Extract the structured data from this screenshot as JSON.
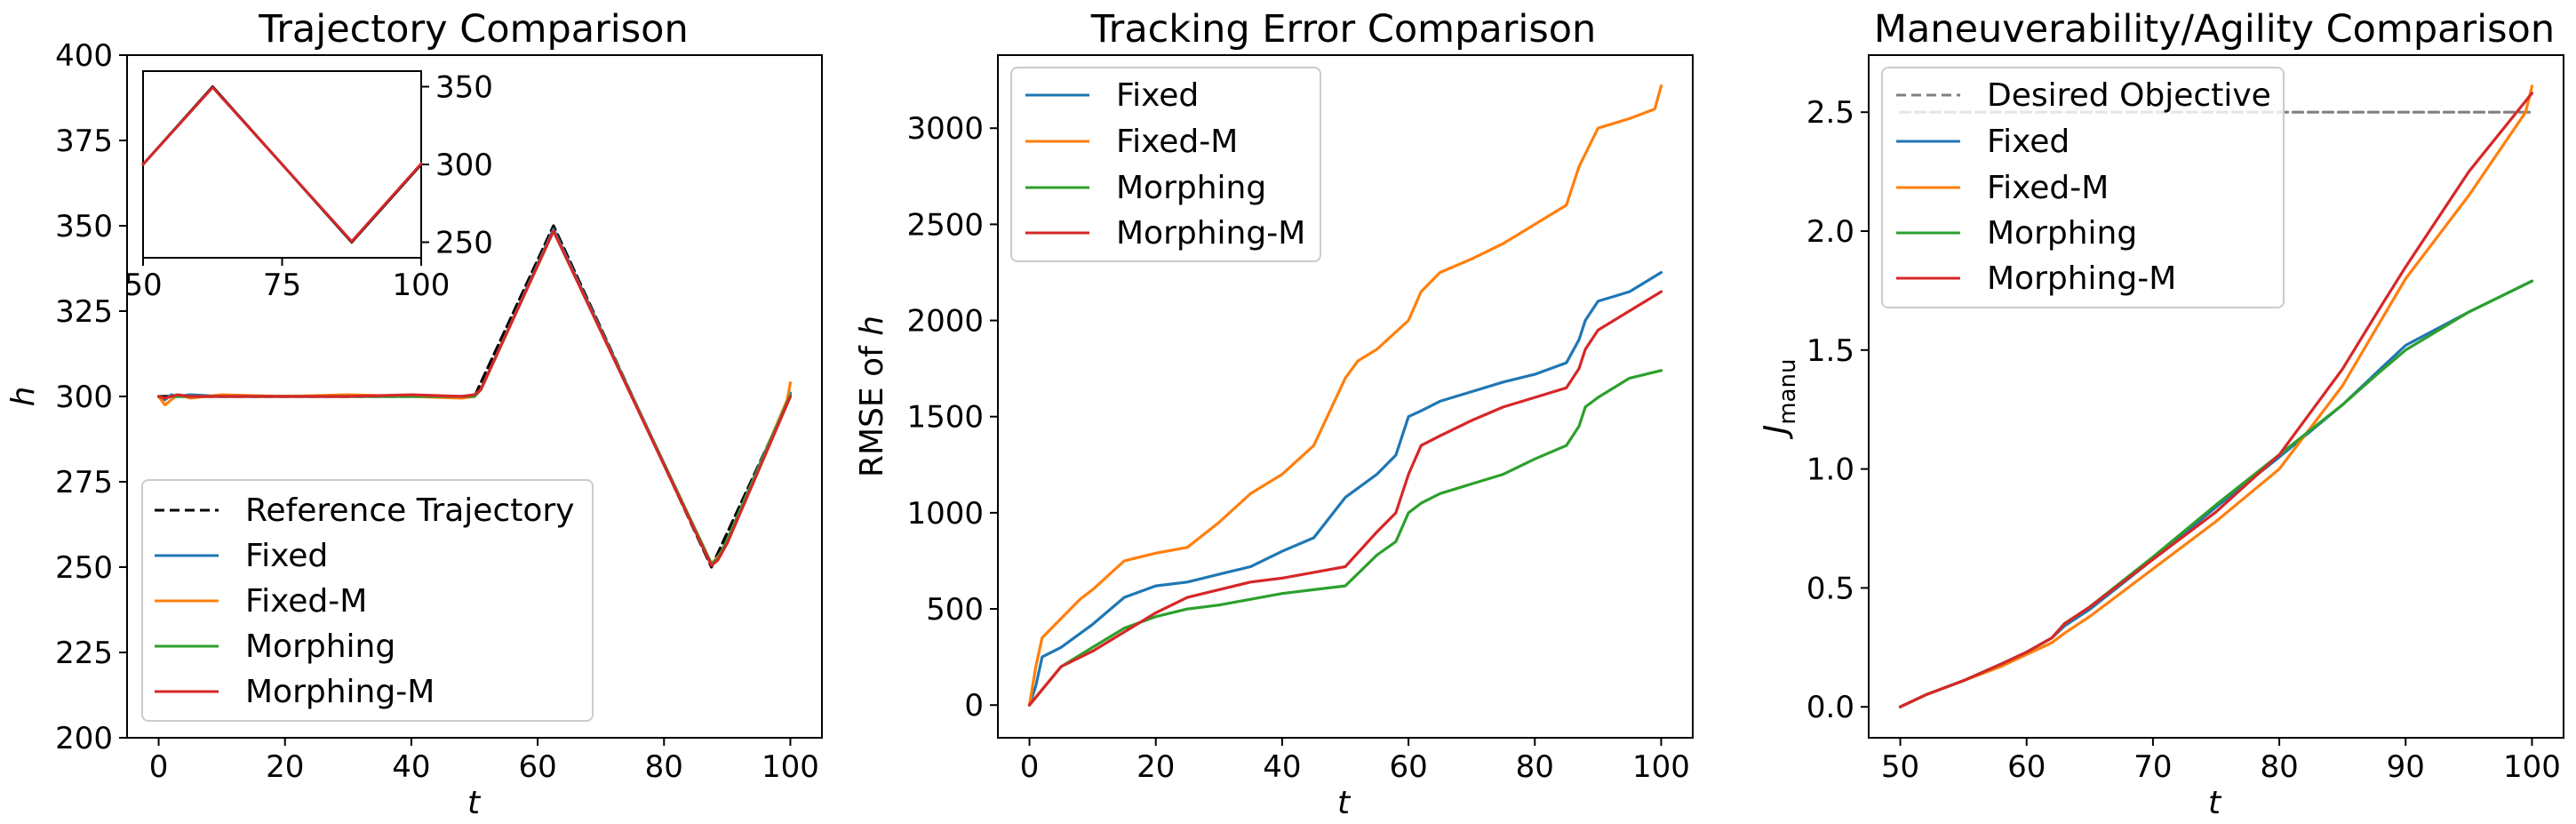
{
  "colors": {
    "fixed": "#1f77b4",
    "fixed_m": "#ff7f0e",
    "morphing": "#2ca02c",
    "morphing_m": "#d62728",
    "reference": "#000000",
    "objective": "#808080"
  },
  "legend_labels": {
    "reference": "Reference Trajectory",
    "fixed": "Fixed",
    "fixed_m": "Fixed-M",
    "morphing": "Morphing",
    "morphing_m": "Morphing-M",
    "objective": "Desired Objective"
  },
  "chart_data": [
    {
      "type": "line",
      "title": "Trajectory Comparison",
      "xlabel": "t",
      "ylabel": "h",
      "xlim": [
        -5,
        105
      ],
      "ylim": [
        200,
        400
      ],
      "xticks": [
        0,
        20,
        40,
        60,
        80,
        100
      ],
      "yticks": [
        200,
        225,
        250,
        275,
        300,
        325,
        350,
        375,
        400
      ],
      "grid": false,
      "legend_position": "lower-left",
      "series": [
        {
          "name": "Reference Trajectory",
          "key": "reference",
          "style": "dashed",
          "x": [
            0,
            50,
            62.5,
            87.5,
            100
          ],
          "y": [
            300,
            300,
            350,
            250,
            300
          ]
        },
        {
          "name": "Fixed",
          "key": "fixed",
          "x": [
            0,
            1,
            2,
            3,
            5,
            10,
            20,
            30,
            40,
            48,
            50,
            51,
            62.5,
            87.5,
            88.5,
            90,
            100
          ],
          "y": [
            300,
            299,
            300.5,
            300,
            300.5,
            300,
            300,
            300,
            300,
            300,
            300.5,
            302,
            349,
            251,
            252,
            258,
            301
          ]
        },
        {
          "name": "Fixed-M",
          "key": "fixed_m",
          "x": [
            0,
            1,
            2,
            3,
            5,
            10,
            20,
            30,
            40,
            48,
            50,
            51,
            62.5,
            87.5,
            88.5,
            90,
            99.5,
            100
          ],
          "y": [
            300,
            297.5,
            299,
            300.5,
            299.5,
            300.5,
            300,
            300.5,
            300,
            299.5,
            300,
            302,
            348.5,
            251,
            253,
            257,
            299,
            304
          ]
        },
        {
          "name": "Morphing",
          "key": "morphing",
          "x": [
            0,
            1,
            2,
            3,
            5,
            10,
            20,
            30,
            40,
            48,
            50,
            51,
            62.5,
            87.5,
            88.5,
            90,
            100
          ],
          "y": [
            300,
            299.5,
            300,
            300,
            300,
            300,
            300,
            300,
            300,
            300,
            300,
            302,
            348.5,
            251,
            252.5,
            258,
            300.5
          ]
        },
        {
          "name": "Morphing-M",
          "key": "morphing_m",
          "x": [
            0,
            1,
            2,
            3,
            5,
            10,
            20,
            30,
            40,
            48,
            50,
            51,
            62.5,
            87.5,
            88.5,
            90,
            100
          ],
          "y": [
            300,
            299.5,
            300,
            300.5,
            300,
            300,
            300,
            300,
            300.5,
            300,
            300.5,
            302,
            348.5,
            250.5,
            252,
            257,
            300
          ]
        }
      ],
      "inset": {
        "xlim": [
          50,
          100
        ],
        "ylim": [
          240,
          360
        ],
        "xticks": [
          50,
          75,
          100
        ],
        "yticks": [
          250,
          300,
          350
        ],
        "series": [
          {
            "key": "reference",
            "x": [
              50,
              62.5,
              87.5,
              100
            ],
            "y": [
              300,
              350,
              250,
              300
            ]
          },
          {
            "key": "morphing_m",
            "x": [
              50,
              62.5,
              87.5,
              100
            ],
            "y": [
              300,
              349.5,
              250.5,
              300.5
            ]
          }
        ]
      }
    },
    {
      "type": "line",
      "title": "Tracking Error Comparison",
      "xlabel": "t",
      "ylabel": "RMSE of h",
      "xlim": [
        -5,
        105
      ],
      "ylim": [
        -170,
        3380
      ],
      "xticks": [
        0,
        20,
        40,
        60,
        80,
        100
      ],
      "yticks": [
        0,
        500,
        1000,
        1500,
        2000,
        2500,
        3000
      ],
      "grid": false,
      "legend_position": "top-left",
      "series": [
        {
          "name": "Fixed",
          "key": "fixed",
          "x": [
            0,
            1,
            2,
            5,
            10,
            15,
            20,
            25,
            30,
            35,
            40,
            45,
            50,
            55,
            58,
            60,
            62,
            65,
            70,
            75,
            80,
            85,
            87,
            88,
            90,
            95,
            100
          ],
          "y": [
            0,
            100,
            250,
            300,
            420,
            560,
            620,
            640,
            680,
            720,
            800,
            870,
            1080,
            1200,
            1300,
            1500,
            1530,
            1580,
            1630,
            1680,
            1720,
            1780,
            1900,
            2000,
            2100,
            2150,
            2250
          ]
        },
        {
          "name": "Fixed-M",
          "key": "fixed_m",
          "x": [
            0,
            1,
            2,
            5,
            8,
            10,
            15,
            20,
            25,
            30,
            35,
            40,
            45,
            50,
            52,
            55,
            60,
            62,
            65,
            70,
            75,
            80,
            85,
            87,
            90,
            95,
            99,
            100
          ],
          "y": [
            0,
            200,
            350,
            450,
            550,
            600,
            750,
            790,
            820,
            950,
            1100,
            1200,
            1350,
            1700,
            1790,
            1850,
            2000,
            2150,
            2250,
            2320,
            2400,
            2500,
            2600,
            2800,
            3000,
            3050,
            3100,
            3220
          ]
        },
        {
          "name": "Morphing",
          "key": "morphing",
          "x": [
            0,
            2,
            5,
            10,
            15,
            20,
            25,
            30,
            35,
            40,
            45,
            50,
            55,
            58,
            60,
            62,
            65,
            70,
            75,
            80,
            85,
            87,
            88,
            90,
            95,
            100
          ],
          "y": [
            0,
            80,
            200,
            300,
            400,
            460,
            500,
            520,
            550,
            580,
            600,
            620,
            780,
            850,
            1000,
            1050,
            1100,
            1150,
            1200,
            1280,
            1350,
            1450,
            1550,
            1600,
            1700,
            1740
          ]
        },
        {
          "name": "Morphing-M",
          "key": "morphing_m",
          "x": [
            0,
            2,
            5,
            10,
            15,
            20,
            25,
            30,
            35,
            40,
            45,
            50,
            55,
            58,
            60,
            62,
            65,
            70,
            75,
            80,
            85,
            87,
            88,
            90,
            95,
            100
          ],
          "y": [
            0,
            80,
            200,
            280,
            380,
            480,
            560,
            600,
            640,
            660,
            690,
            720,
            900,
            1000,
            1200,
            1350,
            1400,
            1480,
            1550,
            1600,
            1650,
            1750,
            1850,
            1950,
            2050,
            2150
          ]
        }
      ]
    },
    {
      "type": "line",
      "title": "Maneuverability/Agility Comparison",
      "xlabel": "t",
      "ylabel": "J_manu",
      "ylabel_main": "J",
      "ylabel_sub": "manu",
      "xlim": [
        47.5,
        102.5
      ],
      "ylim": [
        -0.13,
        2.74
      ],
      "xticks": [
        50,
        60,
        70,
        80,
        90,
        100
      ],
      "yticks": [
        0.0,
        0.5,
        1.0,
        1.5,
        2.0,
        2.5
      ],
      "ytick_labels": [
        "0.0",
        "0.5",
        "1.0",
        "1.5",
        "2.0",
        "2.5"
      ],
      "grid": false,
      "legend_position": "top-left",
      "series": [
        {
          "name": "Desired Objective",
          "key": "objective",
          "style": "dashed",
          "x": [
            50,
            100
          ],
          "y": [
            2.5,
            2.5
          ]
        },
        {
          "name": "Fixed",
          "key": "fixed",
          "x": [
            50,
            52,
            55,
            58,
            60,
            62,
            63,
            65,
            70,
            75,
            80,
            85,
            88,
            90,
            95,
            100
          ],
          "y": [
            0,
            0.05,
            0.11,
            0.18,
            0.23,
            0.29,
            0.34,
            0.41,
            0.62,
            0.84,
            1.05,
            1.27,
            1.42,
            1.52,
            1.66,
            1.79
          ]
        },
        {
          "name": "Fixed-M",
          "key": "fixed_m",
          "x": [
            50,
            52,
            55,
            58,
            60,
            62,
            63,
            65,
            70,
            75,
            80,
            85,
            88,
            90,
            95,
            99.5,
            100
          ],
          "y": [
            0,
            0.05,
            0.11,
            0.17,
            0.22,
            0.27,
            0.31,
            0.38,
            0.58,
            0.78,
            1.0,
            1.35,
            1.62,
            1.8,
            2.15,
            2.5,
            2.61
          ]
        },
        {
          "name": "Morphing",
          "key": "morphing",
          "x": [
            50,
            52,
            55,
            58,
            60,
            62,
            63,
            65,
            70,
            75,
            80,
            85,
            88,
            90,
            95,
            100
          ],
          "y": [
            0,
            0.05,
            0.11,
            0.18,
            0.23,
            0.29,
            0.35,
            0.42,
            0.63,
            0.85,
            1.06,
            1.27,
            1.41,
            1.5,
            1.66,
            1.79
          ]
        },
        {
          "name": "Morphing-M",
          "key": "morphing_m",
          "x": [
            50,
            52,
            55,
            58,
            60,
            62,
            63,
            65,
            70,
            75,
            80,
            85,
            88,
            90,
            95,
            100
          ],
          "y": [
            0,
            0.05,
            0.11,
            0.18,
            0.23,
            0.29,
            0.35,
            0.42,
            0.62,
            0.82,
            1.06,
            1.42,
            1.68,
            1.85,
            2.25,
            2.58
          ]
        }
      ]
    }
  ]
}
